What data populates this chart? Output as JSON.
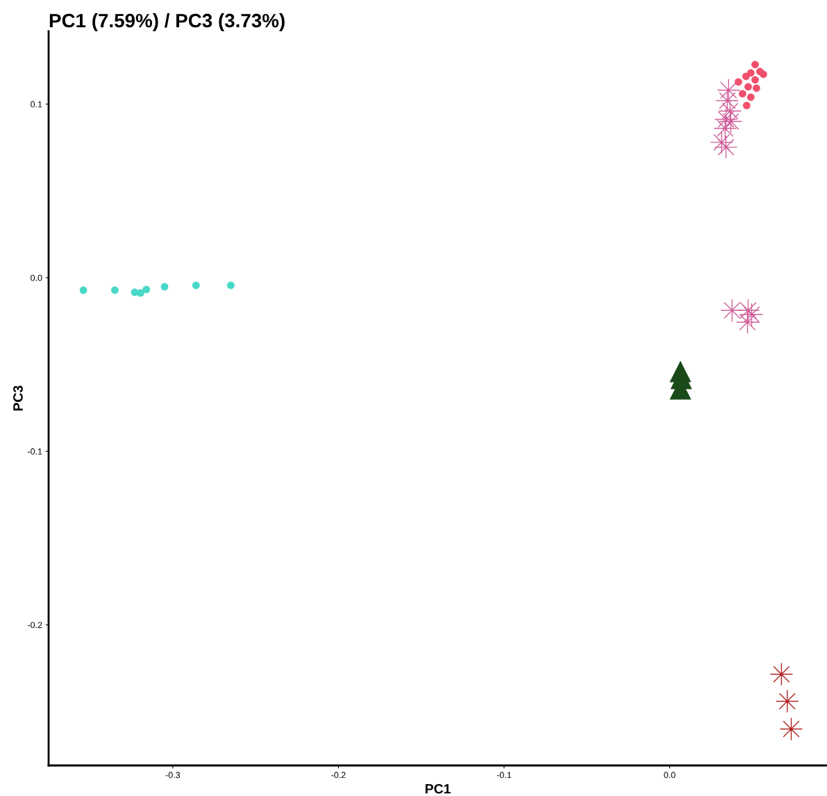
{
  "chart_data": {
    "type": "scatter",
    "title": "PC1 (7.59%) / PC3 (3.73%)",
    "xlabel": "PC1",
    "ylabel": "PC3",
    "xlim": [
      -0.375,
      0.095
    ],
    "ylim": [
      -0.281,
      0.142
    ],
    "xticks": [
      {
        "value": -0.3,
        "label": "-0.3"
      },
      {
        "value": -0.2,
        "label": "-0.2"
      },
      {
        "value": -0.1,
        "label": "-0.1"
      },
      {
        "value": 0,
        "label": "0.0"
      }
    ],
    "yticks": [
      {
        "value": -0.2,
        "label": "-0.2"
      },
      {
        "value": -0.1,
        "label": "-0.1"
      },
      {
        "value": 0,
        "label": "0.0"
      },
      {
        "value": 0.1,
        "label": "0.1"
      }
    ],
    "grid": false,
    "legend": false,
    "series": [
      {
        "color": "#48d8c8",
        "marker": "circle",
        "x": [
          -0.354,
          -0.335,
          -0.323,
          -0.3195,
          -0.316,
          -0.305,
          -0.286,
          -0.265
        ],
        "values": [
          -0.0072,
          -0.0072,
          -0.0084,
          -0.0088,
          -0.0068,
          -0.0052,
          -0.0044,
          -0.0044
        ]
      },
      {
        "color": "#f0506e",
        "marker": "circle",
        "x": [
          0.0516,
          0.049,
          0.0545,
          0.0566,
          0.0461,
          0.0415,
          0.0474,
          0.0524,
          0.044,
          0.049,
          0.0465,
          0.0516
        ],
        "values": [
          0.1228,
          0.118,
          0.1188,
          0.1172,
          0.116,
          0.1128,
          0.11,
          0.1092,
          0.106,
          0.104,
          0.0992,
          0.114
        ]
      },
      {
        "color": "#d0609a",
        "marker": "star",
        "x": [
          0.0356,
          0.0348,
          0.0365,
          0.034,
          0.0369,
          0.0335,
          0.0314,
          0.034,
          0.0377,
          0.0474,
          0.0495,
          0.047
        ],
        "values": [
          0.108,
          0.102,
          0.096,
          0.0912,
          0.09,
          0.086,
          0.078,
          0.0752,
          -0.0188,
          -0.0188,
          -0.0212,
          -0.0256
        ]
      },
      {
        "color": "#1a4a1a",
        "marker": "triangle",
        "x": [
          0.0065,
          0.007,
          0.0065
        ],
        "values": [
          -0.054,
          -0.058,
          -0.064
        ]
      },
      {
        "color": "#b22222",
        "marker": "star",
        "x": [
          0.0675,
          0.071,
          0.0734
        ],
        "values": [
          -0.2284,
          -0.244,
          -0.26
        ]
      }
    ]
  }
}
